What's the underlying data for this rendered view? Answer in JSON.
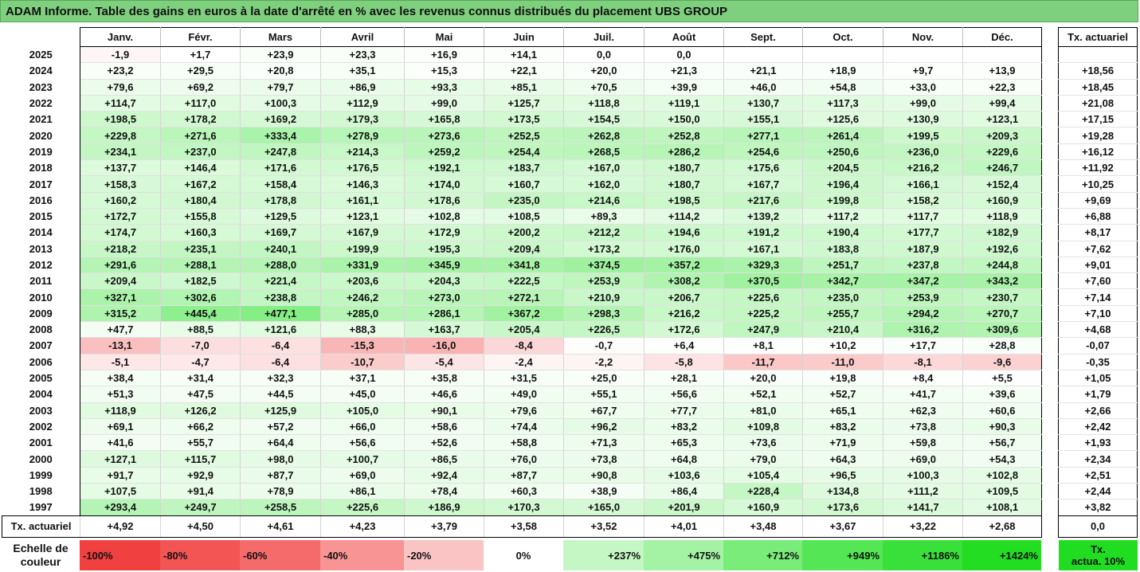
{
  "title": "ADAM Informe. Table des gains en euros à la date d'arrêté en % avec les revenus connus distribués du placement UBS GROUP",
  "months": [
    "Janv.",
    "Févr.",
    "Mars",
    "Avril",
    "Mai",
    "Juin",
    "Juil.",
    "Août",
    "Sept.",
    "Oct.",
    "Nov.",
    "Déc."
  ],
  "side_header": "Tx. actuariel",
  "rows": [
    {
      "year": "2025",
      "values": [
        "-1,9",
        "+1,7",
        "+23,9",
        "+23,3",
        "+16,9",
        "+14,1",
        "0,0",
        "0,0",
        "",
        "",
        "",
        ""
      ],
      "tx": ""
    },
    {
      "year": "2024",
      "values": [
        "+23,2",
        "+29,5",
        "+20,8",
        "+35,1",
        "+15,3",
        "+22,1",
        "+20,0",
        "+21,3",
        "+21,1",
        "+18,9",
        "+9,7",
        "+13,9"
      ],
      "tx": "+18,56"
    },
    {
      "year": "2023",
      "values": [
        "+79,6",
        "+69,2",
        "+79,7",
        "+86,9",
        "+93,3",
        "+85,1",
        "+70,5",
        "+39,9",
        "+46,0",
        "+54,8",
        "+33,0",
        "+22,3"
      ],
      "tx": "+18,45"
    },
    {
      "year": "2022",
      "values": [
        "+114,7",
        "+117,0",
        "+100,3",
        "+112,9",
        "+99,0",
        "+125,7",
        "+118,8",
        "+119,1",
        "+130,7",
        "+117,3",
        "+99,0",
        "+99,4"
      ],
      "tx": "+21,08"
    },
    {
      "year": "2021",
      "values": [
        "+198,5",
        "+178,2",
        "+169,2",
        "+179,3",
        "+165,8",
        "+173,5",
        "+154,5",
        "+150,0",
        "+155,1",
        "+125,6",
        "+130,9",
        "+123,1"
      ],
      "tx": "+17,15"
    },
    {
      "year": "2020",
      "values": [
        "+229,8",
        "+271,6",
        "+333,4",
        "+278,9",
        "+273,6",
        "+252,5",
        "+262,8",
        "+252,8",
        "+277,1",
        "+261,4",
        "+199,5",
        "+209,3"
      ],
      "tx": "+19,28"
    },
    {
      "year": "2019",
      "values": [
        "+234,1",
        "+237,0",
        "+247,8",
        "+214,3",
        "+259,2",
        "+254,4",
        "+268,5",
        "+286,2",
        "+254,6",
        "+250,6",
        "+236,0",
        "+229,6"
      ],
      "tx": "+16,12"
    },
    {
      "year": "2018",
      "values": [
        "+137,7",
        "+146,4",
        "+171,6",
        "+176,5",
        "+192,1",
        "+183,7",
        "+167,0",
        "+180,7",
        "+175,6",
        "+204,5",
        "+216,2",
        "+246,7"
      ],
      "tx": "+11,92"
    },
    {
      "year": "2017",
      "values": [
        "+158,3",
        "+167,2",
        "+158,4",
        "+146,3",
        "+174,0",
        "+160,7",
        "+162,0",
        "+180,7",
        "+167,7",
        "+196,4",
        "+166,1",
        "+152,4"
      ],
      "tx": "+10,25"
    },
    {
      "year": "2016",
      "values": [
        "+160,2",
        "+180,4",
        "+178,8",
        "+161,1",
        "+178,6",
        "+235,0",
        "+214,6",
        "+198,5",
        "+217,6",
        "+199,8",
        "+158,2",
        "+160,9"
      ],
      "tx": "+9,69"
    },
    {
      "year": "2015",
      "values": [
        "+172,7",
        "+155,8",
        "+129,5",
        "+123,1",
        "+102,8",
        "+108,5",
        "+89,3",
        "+114,2",
        "+139,2",
        "+117,2",
        "+117,7",
        "+118,9"
      ],
      "tx": "+6,88"
    },
    {
      "year": "2014",
      "values": [
        "+174,7",
        "+160,3",
        "+169,7",
        "+167,9",
        "+172,9",
        "+200,2",
        "+212,2",
        "+194,6",
        "+191,2",
        "+190,4",
        "+177,7",
        "+182,9"
      ],
      "tx": "+8,17"
    },
    {
      "year": "2013",
      "values": [
        "+218,2",
        "+235,1",
        "+240,1",
        "+199,9",
        "+195,3",
        "+209,4",
        "+173,2",
        "+176,0",
        "+167,1",
        "+183,8",
        "+187,9",
        "+192,6"
      ],
      "tx": "+7,62"
    },
    {
      "year": "2012",
      "values": [
        "+291,6",
        "+288,1",
        "+288,0",
        "+331,9",
        "+345,9",
        "+341,8",
        "+374,5",
        "+357,2",
        "+329,3",
        "+251,7",
        "+237,8",
        "+244,8"
      ],
      "tx": "+9,01"
    },
    {
      "year": "2011",
      "values": [
        "+209,4",
        "+182,5",
        "+221,4",
        "+203,6",
        "+204,3",
        "+222,5",
        "+253,9",
        "+308,2",
        "+370,5",
        "+342,7",
        "+347,2",
        "+343,2"
      ],
      "tx": "+7,60"
    },
    {
      "year": "2010",
      "values": [
        "+327,1",
        "+302,6",
        "+238,8",
        "+246,2",
        "+273,0",
        "+272,1",
        "+210,9",
        "+206,7",
        "+225,6",
        "+235,0",
        "+253,9",
        "+230,7"
      ],
      "tx": "+7,14"
    },
    {
      "year": "2009",
      "values": [
        "+315,2",
        "+445,4",
        "+477,1",
        "+285,0",
        "+286,1",
        "+367,2",
        "+298,3",
        "+216,2",
        "+225,2",
        "+255,7",
        "+294,2",
        "+270,7"
      ],
      "tx": "+7,10"
    },
    {
      "year": "2008",
      "values": [
        "+47,7",
        "+88,5",
        "+121,6",
        "+88,3",
        "+163,7",
        "+205,4",
        "+226,5",
        "+172,6",
        "+247,9",
        "+210,4",
        "+316,2",
        "+309,6"
      ],
      "tx": "+4,68"
    },
    {
      "year": "2007",
      "values": [
        "-13,1",
        "-7,0",
        "-6,4",
        "-15,3",
        "-16,0",
        "-8,4",
        "-0,7",
        "+6,4",
        "+8,1",
        "+10,2",
        "+17,7",
        "+28,8"
      ],
      "tx": "-0,07"
    },
    {
      "year": "2006",
      "values": [
        "-5,1",
        "-4,7",
        "-6,4",
        "-10,7",
        "-5,4",
        "-2,4",
        "-2,2",
        "-5,8",
        "-11,7",
        "-11,0",
        "-8,1",
        "-9,6"
      ],
      "tx": "-0,35"
    },
    {
      "year": "2005",
      "values": [
        "+38,4",
        "+31,4",
        "+32,3",
        "+37,1",
        "+35,8",
        "+31,5",
        "+25,0",
        "+28,1",
        "+20,0",
        "+19,8",
        "+8,4",
        "+5,5"
      ],
      "tx": "+1,05"
    },
    {
      "year": "2004",
      "values": [
        "+51,3",
        "+47,5",
        "+44,5",
        "+45,0",
        "+46,6",
        "+49,0",
        "+55,1",
        "+56,6",
        "+52,1",
        "+52,7",
        "+41,7",
        "+39,6"
      ],
      "tx": "+1,79"
    },
    {
      "year": "2003",
      "values": [
        "+118,9",
        "+126,2",
        "+125,9",
        "+105,0",
        "+90,1",
        "+79,6",
        "+67,7",
        "+77,7",
        "+81,0",
        "+65,1",
        "+62,3",
        "+60,6"
      ],
      "tx": "+2,66"
    },
    {
      "year": "2002",
      "values": [
        "+69,1",
        "+66,2",
        "+57,2",
        "+66,0",
        "+58,6",
        "+74,4",
        "+96,2",
        "+83,2",
        "+109,8",
        "+83,2",
        "+73,8",
        "+90,3"
      ],
      "tx": "+2,42"
    },
    {
      "year": "2001",
      "values": [
        "+41,6",
        "+55,7",
        "+64,4",
        "+56,6",
        "+52,6",
        "+58,8",
        "+71,3",
        "+65,3",
        "+73,6",
        "+71,9",
        "+59,8",
        "+56,7"
      ],
      "tx": "+1,93"
    },
    {
      "year": "2000",
      "values": [
        "+127,1",
        "+115,7",
        "+98,0",
        "+100,7",
        "+86,5",
        "+76,0",
        "+73,8",
        "+64,8",
        "+79,0",
        "+64,3",
        "+69,0",
        "+54,3"
      ],
      "tx": "+2,34"
    },
    {
      "year": "1999",
      "values": [
        "+91,7",
        "+92,9",
        "+87,7",
        "+69,0",
        "+92,4",
        "+87,7",
        "+90,8",
        "+103,6",
        "+105,4",
        "+96,5",
        "+100,3",
        "+102,8"
      ],
      "tx": "+2,51"
    },
    {
      "year": "1998",
      "values": [
        "+107,5",
        "+91,4",
        "+78,9",
        "+86,1",
        "+78,4",
        "+60,3",
        "+38,9",
        "+86,4",
        "+228,4",
        "+134,8",
        "+111,2",
        "+109,5"
      ],
      "tx": "+2,44"
    },
    {
      "year": "1997",
      "values": [
        "+293,4",
        "+249,7",
        "+258,5",
        "+225,6",
        "+186,9",
        "+170,3",
        "+165,0",
        "+201,9",
        "+160,9",
        "+173,6",
        "+141,7",
        "+108,1"
      ],
      "tx": "+3,82"
    }
  ],
  "tx_row": {
    "label": "Tx. actuariel",
    "values": [
      "+4,92",
      "+4,50",
      "+4,61",
      "+4,23",
      "+3,79",
      "+3,58",
      "+3,52",
      "+4,01",
      "+3,48",
      "+3,67",
      "+3,22",
      "+2,68"
    ],
    "side": "0,0"
  },
  "scale": {
    "label_line1": "Echelle de",
    "label_line2": "couleur",
    "stops": [
      {
        "label": "-100%",
        "color": "#f04040"
      },
      {
        "label": "-80%",
        "color": "#f35454"
      },
      {
        "label": "-60%",
        "color": "#f56a6a"
      },
      {
        "label": "-40%",
        "color": "#f89494"
      },
      {
        "label": "-20%",
        "color": "#fbc4c4"
      },
      {
        "label": "0%",
        "color": "#ffffff"
      },
      {
        "label": "+237%",
        "color": "#c4f7c4"
      },
      {
        "label": "+475%",
        "color": "#a4f2a4"
      },
      {
        "label": "+712%",
        "color": "#7aec7a"
      },
      {
        "label": "+949%",
        "color": "#55e655"
      },
      {
        "label": "+1186%",
        "color": "#3ae03a"
      },
      {
        "label": "+1424%",
        "color": "#22dd22"
      }
    ],
    "side_line1": "Tx.",
    "side_line2": "actua. 10%",
    "side_color": "#21dd21"
  }
}
